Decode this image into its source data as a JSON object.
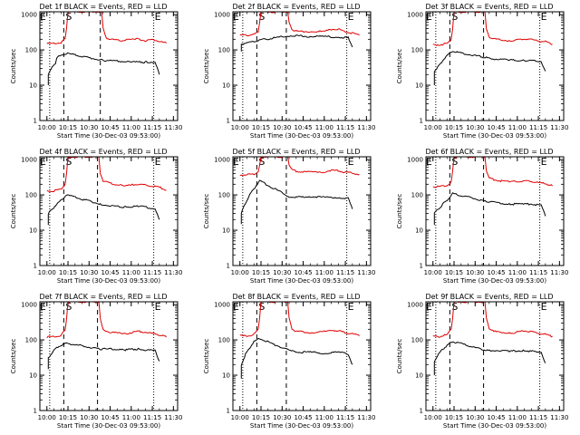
{
  "figure": {
    "panel_titles": [
      "Det 1f BLACK = Events, RED = LLD",
      "Det 2f BLACK = Events, RED = LLD",
      "Det 3f BLACK = Events, RED = LLD",
      "Det 4f BLACK = Events, RED = LLD",
      "Det 5f BLACK = Events, RED = LLD",
      "Det 6f BLACK = Events, RED = LLD",
      "Det 7f BLACK = Events, RED = LLD",
      "Det 8f BLACK = Events, RED = LLD",
      "Det 9f BLACK = Events, RED = LLD"
    ],
    "colors": {
      "events": "#000000",
      "lld": "#e00000",
      "axes": "#000000"
    }
  },
  "chart_data": [
    {
      "type": "line",
      "title": "Det 1f BLACK = Events, RED = LLD",
      "xlabel": "Start Time (30-Dec-03 09:53:00)",
      "ylabel": "Counts/sec",
      "yscale": "log",
      "ylim": [
        1,
        1000
      ],
      "yticks": [
        "1",
        "10",
        "100",
        "1000"
      ],
      "xticks": [
        "10:00",
        "10:15",
        "10:30",
        "10:45",
        "11:00",
        "11:15",
        "11:30"
      ],
      "markers": [
        "E",
        "S",
        "E"
      ],
      "series": [
        {
          "name": "LLD",
          "color": "#e00000",
          "x": [
            "10:00",
            "10:05",
            "10:10",
            "10:13",
            "10:14",
            "10:15",
            "10:15",
            "10:39",
            "10:40",
            "10:42",
            "10:45",
            "10:50",
            "10:55",
            "11:00",
            "11:02",
            "11:05",
            "11:10",
            "11:15",
            "11:20",
            "11:25"
          ],
          "y": [
            150,
            150,
            160,
            210,
            420,
            1200,
            1200,
            1200,
            420,
            220,
            200,
            185,
            185,
            200,
            210,
            200,
            180,
            190,
            175,
            155
          ]
        },
        {
          "name": "Events",
          "color": "#000000",
          "x": [
            "10:01",
            "10:01",
            "10:03",
            "10:06",
            "10:07",
            "10:10",
            "10:14",
            "10:40",
            "10:43",
            "10:50",
            "11:00",
            "11:10",
            "11:17",
            "11:20"
          ],
          "y": [
            10,
            20,
            30,
            40,
            60,
            70,
            80,
            50,
            50,
            48,
            45,
            45,
            45,
            20
          ]
        }
      ]
    },
    {
      "type": "line",
      "title": "Det 2f BLACK = Events, RED = LLD",
      "xlabel": "Start Time (30-Dec-03 09:53:00)",
      "ylabel": "Counts/sec",
      "yscale": "log",
      "ylim": [
        1,
        1000
      ],
      "yticks": [
        "1",
        "10",
        "100",
        "1000"
      ],
      "xticks": [
        "10:00",
        "10:15",
        "10:30",
        "10:45",
        "11:00",
        "11:15",
        "11:30"
      ],
      "markers": [
        "E",
        "S",
        "E"
      ],
      "series": [
        {
          "name": "LLD",
          "color": "#e00000",
          "x": [
            "10:00",
            "10:05",
            "10:10",
            "10:13",
            "10:14",
            "10:15",
            "10:15",
            "10:34",
            "10:35",
            "10:37",
            "10:40",
            "10:50",
            "11:00",
            "11:05",
            "11:10",
            "11:15",
            "11:20",
            "11:25"
          ],
          "y": [
            260,
            260,
            280,
            320,
            600,
            1200,
            1200,
            1200,
            600,
            380,
            340,
            330,
            330,
            380,
            390,
            330,
            300,
            260
          ]
        },
        {
          "name": "Events",
          "color": "#000000",
          "x": [
            "10:01",
            "10:01",
            "10:05",
            "10:10",
            "10:14",
            "10:35",
            "10:40",
            "10:50",
            "11:00",
            "11:10",
            "11:17",
            "11:20"
          ],
          "y": [
            90,
            150,
            160,
            170,
            190,
            250,
            250,
            240,
            240,
            230,
            220,
            120
          ]
        }
      ]
    },
    {
      "type": "line",
      "title": "Det 3f BLACK = Events, RED = LLD",
      "xlabel": "Start Time (30-Dec-03 09:53:00)",
      "ylabel": "Counts/sec",
      "yscale": "log",
      "ylim": [
        1,
        1000
      ],
      "yticks": [
        "1",
        "10",
        "100",
        "1000"
      ],
      "xticks": [
        "10:00",
        "10:15",
        "10:30",
        "10:45",
        "11:00",
        "11:15",
        "11:30"
      ],
      "markers": [
        "E",
        "S",
        "E"
      ],
      "series": [
        {
          "name": "LLD",
          "color": "#e00000",
          "x": [
            "10:00",
            "10:05",
            "10:10",
            "10:13",
            "10:14",
            "10:15",
            "10:15",
            "10:37",
            "10:38",
            "10:40",
            "10:45",
            "10:55",
            "11:00",
            "11:05",
            "11:10",
            "11:15",
            "11:20",
            "11:25"
          ],
          "y": [
            140,
            140,
            150,
            200,
            400,
            1200,
            1200,
            1200,
            400,
            230,
            200,
            180,
            190,
            205,
            195,
            180,
            170,
            145
          ]
        },
        {
          "name": "Events",
          "color": "#000000",
          "x": [
            "10:01",
            "10:01",
            "10:04",
            "10:07",
            "10:10",
            "10:14",
            "10:38",
            "10:45",
            "10:55",
            "11:05",
            "11:10",
            "11:17",
            "11:20"
          ],
          "y": [
            10,
            25,
            35,
            50,
            70,
            90,
            60,
            55,
            52,
            50,
            50,
            47,
            25
          ]
        }
      ]
    },
    {
      "type": "line",
      "title": "Det 4f BLACK = Events, RED = LLD",
      "xlabel": "Start Time (30-Dec-03 09:53:00)",
      "ylabel": "Counts/sec",
      "yscale": "log",
      "ylim": [
        1,
        1000
      ],
      "yticks": [
        "1",
        "10",
        "100",
        "1000"
      ],
      "xticks": [
        "10:00",
        "10:15",
        "10:30",
        "10:45",
        "11:00",
        "11:15",
        "11:30"
      ],
      "markers": [
        "E",
        "S",
        "E"
      ],
      "series": [
        {
          "name": "LLD",
          "color": "#e00000",
          "x": [
            "10:00",
            "10:05",
            "10:10",
            "10:13",
            "10:14",
            "10:15",
            "10:15",
            "10:37",
            "10:38",
            "10:40",
            "10:45",
            "10:55",
            "11:00",
            "11:05",
            "11:10",
            "11:15",
            "11:20",
            "11:25"
          ],
          "y": [
            130,
            130,
            145,
            200,
            420,
            1200,
            1200,
            1200,
            400,
            250,
            210,
            180,
            190,
            200,
            190,
            175,
            165,
            135
          ]
        },
        {
          "name": "Events",
          "color": "#000000",
          "x": [
            "10:01",
            "10:01",
            "10:04",
            "10:07",
            "10:10",
            "10:14",
            "10:38",
            "10:45",
            "10:55",
            "11:05",
            "11:10",
            "11:17",
            "11:20"
          ],
          "y": [
            14,
            30,
            40,
            55,
            70,
            100,
            55,
            50,
            45,
            48,
            45,
            40,
            20
          ]
        }
      ]
    },
    {
      "type": "line",
      "title": "Det 5f BLACK = Events, RED = LLD",
      "xlabel": "Start Time (30-Dec-03 09:53:00)",
      "ylabel": "Counts/sec",
      "yscale": "log",
      "ylim": [
        1,
        1000
      ],
      "yticks": [
        "1",
        "10",
        "100",
        "1000"
      ],
      "xticks": [
        "10:00",
        "10:15",
        "10:30",
        "10:45",
        "11:00",
        "11:15",
        "11:30"
      ],
      "markers": [
        "E",
        "S",
        "E"
      ],
      "series": [
        {
          "name": "LLD",
          "color": "#e00000",
          "x": [
            "10:00",
            "10:05",
            "10:10",
            "10:13",
            "10:14",
            "10:15",
            "10:15",
            "10:34",
            "10:35",
            "10:37",
            "10:40",
            "10:50",
            "11:00",
            "11:05",
            "11:10",
            "11:15",
            "11:20",
            "11:25"
          ],
          "y": [
            370,
            370,
            390,
            450,
            700,
            1200,
            1200,
            1200,
            700,
            520,
            470,
            440,
            450,
            500,
            480,
            430,
            420,
            380
          ]
        },
        {
          "name": "Events",
          "color": "#000000",
          "x": [
            "10:01",
            "10:01",
            "10:04",
            "10:07",
            "10:10",
            "10:14",
            "10:35",
            "10:40",
            "10:50",
            "11:00",
            "11:10",
            "11:17",
            "11:20"
          ],
          "y": [
            15,
            30,
            60,
            100,
            150,
            250,
            90,
            85,
            90,
            85,
            85,
            80,
            40
          ]
        }
      ]
    },
    {
      "type": "line",
      "title": "Det 6f BLACK = Events, RED = LLD",
      "xlabel": "Start Time (30-Dec-03 09:53:00)",
      "ylabel": "Counts/sec",
      "yscale": "log",
      "ylim": [
        1,
        1000
      ],
      "yticks": [
        "1",
        "10",
        "100",
        "1000"
      ],
      "xticks": [
        "10:00",
        "10:15",
        "10:30",
        "10:45",
        "11:00",
        "11:15",
        "11:30"
      ],
      "markers": [
        "E",
        "S",
        "E"
      ],
      "series": [
        {
          "name": "LLD",
          "color": "#e00000",
          "x": [
            "10:00",
            "10:05",
            "10:10",
            "10:13",
            "10:14",
            "10:15",
            "10:15",
            "10:37",
            "10:38",
            "10:40",
            "10:45",
            "10:55",
            "11:00",
            "11:05",
            "11:10",
            "11:15",
            "11:20",
            "11:25"
          ],
          "y": [
            170,
            170,
            185,
            240,
            480,
            1200,
            1200,
            1200,
            480,
            300,
            260,
            230,
            240,
            250,
            240,
            220,
            210,
            180
          ]
        },
        {
          "name": "Events",
          "color": "#000000",
          "x": [
            "10:01",
            "10:01",
            "10:04",
            "10:07",
            "10:10",
            "10:14",
            "10:38",
            "10:45",
            "10:55",
            "11:05",
            "11:10",
            "11:17",
            "11:20"
          ],
          "y": [
            14,
            30,
            40,
            55,
            70,
            110,
            65,
            60,
            55,
            55,
            55,
            50,
            25
          ]
        }
      ]
    },
    {
      "type": "line",
      "title": "Det 7f BLACK = Events, RED = LLD",
      "xlabel": "Start Time (30-Dec-03 09:53:00)",
      "ylabel": "Counts/sec",
      "yscale": "log",
      "ylim": [
        1,
        1000
      ],
      "yticks": [
        "1",
        "10",
        "100",
        "1000"
      ],
      "xticks": [
        "10:00",
        "10:15",
        "10:30",
        "10:45",
        "11:00",
        "11:15",
        "11:30"
      ],
      "markers": [
        "E",
        "S",
        "E"
      ],
      "series": [
        {
          "name": "LLD",
          "color": "#e00000",
          "x": [
            "10:00",
            "10:05",
            "10:10",
            "10:13",
            "10:14",
            "10:15",
            "10:15",
            "10:37",
            "10:38",
            "10:40",
            "10:45",
            "10:55",
            "11:00",
            "11:05",
            "11:10",
            "11:15",
            "11:20",
            "11:25"
          ],
          "y": [
            120,
            120,
            135,
            190,
            400,
            1200,
            1200,
            1200,
            400,
            190,
            165,
            150,
            160,
            175,
            165,
            150,
            140,
            120
          ]
        },
        {
          "name": "Events",
          "color": "#000000",
          "x": [
            "10:01",
            "10:01",
            "10:04",
            "10:07",
            "10:10",
            "10:14",
            "10:38",
            "10:45",
            "10:55",
            "11:05",
            "11:10",
            "11:17",
            "11:20"
          ],
          "y": [
            15,
            30,
            45,
            60,
            70,
            80,
            55,
            55,
            52,
            55,
            52,
            50,
            25
          ]
        }
      ]
    },
    {
      "type": "line",
      "title": "Det 8f BLACK = Events, RED = LLD",
      "xlabel": "Start Time (30-Dec-03 09:53:00)",
      "ylabel": "Counts/sec",
      "yscale": "log",
      "ylim": [
        1,
        1000
      ],
      "yticks": [
        "1",
        "10",
        "100",
        "1000"
      ],
      "xticks": [
        "10:00",
        "10:15",
        "10:30",
        "10:45",
        "11:00",
        "11:15",
        "11:30"
      ],
      "markers": [
        "E",
        "S",
        "E"
      ],
      "series": [
        {
          "name": "LLD",
          "color": "#e00000",
          "x": [
            "10:00",
            "10:05",
            "10:10",
            "10:13",
            "10:14",
            "10:15",
            "10:15",
            "10:34",
            "10:35",
            "10:37",
            "10:40",
            "10:50",
            "11:00",
            "11:05",
            "11:10",
            "11:15",
            "11:20",
            "11:25"
          ],
          "y": [
            130,
            130,
            145,
            200,
            420,
            1200,
            1200,
            1200,
            420,
            210,
            175,
            160,
            170,
            190,
            180,
            160,
            150,
            130
          ]
        },
        {
          "name": "Events",
          "color": "#000000",
          "x": [
            "10:01",
            "10:01",
            "10:04",
            "10:07",
            "10:10",
            "10:14",
            "10:35",
            "10:40",
            "10:50",
            "11:00",
            "11:10",
            "11:17",
            "11:20"
          ],
          "y": [
            8,
            20,
            40,
            60,
            90,
            110,
            50,
            45,
            45,
            42,
            45,
            40,
            20
          ]
        }
      ]
    },
    {
      "type": "line",
      "title": "Det 9f BLACK = Events, RED = LLD",
      "xlabel": "Start Time (30-Dec-03 09:53:00)",
      "ylabel": "Counts/sec",
      "yscale": "log",
      "ylim": [
        1,
        1000
      ],
      "yticks": [
        "1",
        "10",
        "100",
        "1000"
      ],
      "xticks": [
        "10:00",
        "10:15",
        "10:30",
        "10:45",
        "11:00",
        "11:15",
        "11:30"
      ],
      "markers": [
        "E",
        "S",
        "E"
      ],
      "series": [
        {
          "name": "LLD",
          "color": "#e00000",
          "x": [
            "10:00",
            "10:05",
            "10:10",
            "10:13",
            "10:14",
            "10:15",
            "10:15",
            "10:37",
            "10:38",
            "10:40",
            "10:45",
            "10:55",
            "11:00",
            "11:05",
            "11:10",
            "11:15",
            "11:20",
            "11:25"
          ],
          "y": [
            125,
            125,
            140,
            200,
            420,
            1200,
            1200,
            1200,
            420,
            210,
            170,
            155,
            165,
            180,
            170,
            155,
            145,
            125
          ]
        },
        {
          "name": "Events",
          "color": "#000000",
          "x": [
            "10:01",
            "10:01",
            "10:04",
            "10:07",
            "10:10",
            "10:14",
            "10:38",
            "10:45",
            "10:55",
            "11:05",
            "11:10",
            "11:17",
            "11:20"
          ],
          "y": [
            10,
            25,
            40,
            55,
            70,
            90,
            50,
            50,
            48,
            50,
            48,
            45,
            22
          ]
        }
      ]
    }
  ]
}
